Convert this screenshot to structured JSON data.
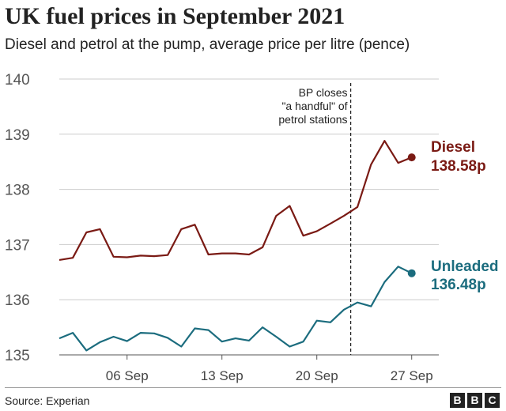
{
  "header": {
    "title": "UK fuel prices in September 2021",
    "subtitle": "Diesel and petrol at the pump, average price per litre (pence)"
  },
  "footer": {
    "source": "Source: Experian",
    "logo_letters": [
      "B",
      "B",
      "C"
    ]
  },
  "chart_data": {
    "type": "line",
    "ylim": [
      135,
      140
    ],
    "yticks": [
      "135",
      "136",
      "137",
      "138",
      "139",
      "140"
    ],
    "xlim": [
      1,
      29
    ],
    "xticks": [
      {
        "label": "06 Sep",
        "day": 6
      },
      {
        "label": "13 Sep",
        "day": 13
      },
      {
        "label": "20 Sep",
        "day": 20
      },
      {
        "label": "27 Sep",
        "day": 27
      }
    ],
    "grid": true,
    "annotation": {
      "day": 22.5,
      "lines": [
        "BP closes",
        "\"a handful\" of",
        "petrol stations"
      ]
    },
    "series": [
      {
        "name": "Diesel",
        "end_label": "138.58p",
        "color": "#7a1a14",
        "x": [
          1,
          2,
          3,
          4,
          5,
          6,
          7,
          8,
          9,
          10,
          11,
          12,
          13,
          14,
          15,
          16,
          17,
          18,
          19,
          20,
          21,
          22,
          23,
          24,
          25,
          26,
          27
        ],
        "y": [
          136.72,
          136.76,
          137.22,
          137.28,
          136.78,
          136.77,
          136.8,
          136.79,
          136.81,
          137.28,
          137.36,
          136.82,
          136.84,
          136.84,
          136.82,
          136.95,
          137.52,
          137.7,
          137.16,
          137.24,
          137.38,
          137.52,
          137.68,
          138.45,
          138.88,
          138.48,
          138.58
        ]
      },
      {
        "name": "Unleaded",
        "end_label": "136.48p",
        "color": "#1b6c7e",
        "x": [
          1,
          2,
          3,
          4,
          5,
          6,
          7,
          8,
          9,
          10,
          11,
          12,
          13,
          14,
          15,
          16,
          17,
          18,
          19,
          20,
          21,
          22,
          23,
          24,
          25,
          26,
          27
        ],
        "y": [
          135.3,
          135.4,
          135.08,
          135.23,
          135.33,
          135.25,
          135.4,
          135.39,
          135.31,
          135.15,
          135.48,
          135.45,
          135.24,
          135.3,
          135.26,
          135.5,
          135.33,
          135.15,
          135.24,
          135.62,
          135.59,
          135.82,
          135.95,
          135.88,
          136.32,
          136.6,
          136.48
        ]
      }
    ]
  }
}
